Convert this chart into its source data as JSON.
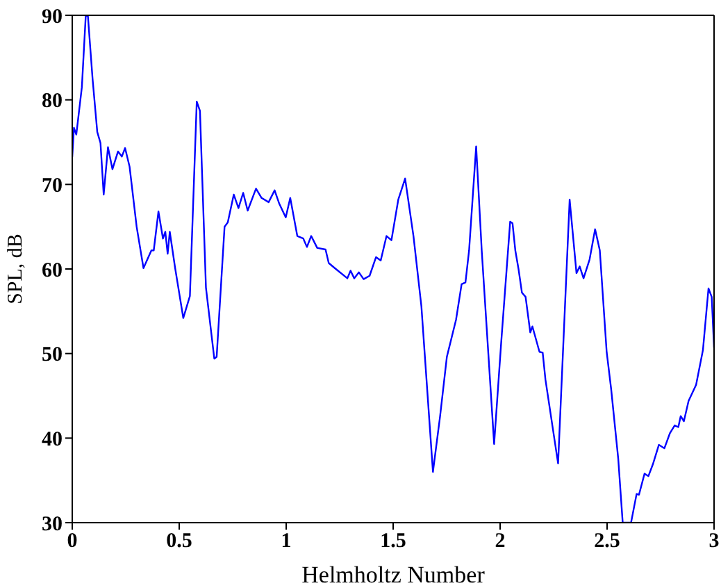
{
  "chart_data": {
    "type": "line",
    "xlabel": "Helmholtz Number",
    "ylabel": "SPL, dB",
    "xlim": [
      0,
      3
    ],
    "xticks": [
      0,
      0.5,
      1,
      1.5,
      2,
      2.5,
      3
    ],
    "ylim": [
      30,
      90
    ],
    "yticks": [
      30,
      40,
      50,
      60,
      70,
      80,
      90
    ],
    "series": [
      {
        "color": "#0000ff",
        "x": [
          0,
          0.008,
          0.019,
          0.045,
          0.063,
          0.073,
          0.095,
          0.117,
          0.132,
          0.147,
          0.167,
          0.188,
          0.214,
          0.232,
          0.247,
          0.268,
          0.301,
          0.333,
          0.37,
          0.381,
          0.403,
          0.424,
          0.435,
          0.446,
          0.456,
          0.481,
          0.519,
          0.55,
          0.582,
          0.597,
          0.625,
          0.664,
          0.675,
          0.712,
          0.727,
          0.755,
          0.777,
          0.799,
          0.82,
          0.859,
          0.885,
          0.918,
          0.946,
          0.968,
          0.998,
          1.019,
          1.052,
          1.08,
          1.097,
          1.117,
          1.145,
          1.184,
          1.199,
          1.232,
          1.286,
          1.301,
          1.318,
          1.34,
          1.362,
          1.39,
          1.42,
          1.442,
          1.469,
          1.492,
          1.524,
          1.556,
          1.595,
          1.632,
          1.686,
          1.719,
          1.751,
          1.794,
          1.82,
          1.838,
          1.855,
          1.888,
          1.914,
          1.972,
          2.005,
          2.047,
          2.058,
          2.071,
          2.086,
          2.102,
          2.119,
          2.141,
          2.151,
          2.184,
          2.199,
          2.212,
          2.271,
          2.325,
          2.357,
          2.372,
          2.39,
          2.418,
          2.444,
          2.466,
          2.498,
          2.519,
          2.552,
          2.573,
          2.612,
          2.638,
          2.649,
          2.675,
          2.693,
          2.714,
          2.742,
          2.768,
          2.794,
          2.816,
          2.833,
          2.844,
          2.859,
          2.881,
          2.916,
          2.948,
          2.974,
          2.989,
          3
        ],
        "values": [
          73.2,
          76.7,
          75.9,
          81.5,
          89.9,
          90,
          82.5,
          76.2,
          74.9,
          68.8,
          74.4,
          71.8,
          73.9,
          73.3,
          74.3,
          72.1,
          65,
          60.1,
          62.2,
          62.2,
          66.8,
          63.6,
          64.4,
          61.8,
          64.4,
          60.1,
          54.2,
          56.8,
          79.8,
          78.7,
          57.8,
          49.4,
          49.6,
          65,
          65.5,
          68.8,
          67.2,
          69,
          66.9,
          69.5,
          68.4,
          67.9,
          69.3,
          67.7,
          66.1,
          68.4,
          63.9,
          63.6,
          62.6,
          63.9,
          62.5,
          62.3,
          60.7,
          60,
          58.9,
          59.8,
          58.9,
          59.6,
          58.8,
          59.2,
          61.4,
          61,
          63.9,
          63.4,
          68.2,
          70.7,
          63.9,
          55.6,
          36,
          42.5,
          49.6,
          54,
          58.2,
          58.4,
          62.2,
          74.5,
          62.2,
          39.3,
          51.3,
          65.6,
          65.4,
          62.2,
          60,
          57.2,
          56.7,
          52.5,
          53.2,
          50.2,
          50.1,
          46.9,
          37,
          68.2,
          59.5,
          60.3,
          58.9,
          61.1,
          64.7,
          62.2,
          50.2,
          45.8,
          37.6,
          30,
          30,
          33.4,
          33.3,
          35.8,
          35.5,
          36.9,
          39.2,
          38.8,
          40.6,
          41.5,
          41.3,
          42.6,
          42,
          44.4,
          46.3,
          50.4,
          57.7,
          56.7,
          50.7
        ]
      }
    ]
  }
}
